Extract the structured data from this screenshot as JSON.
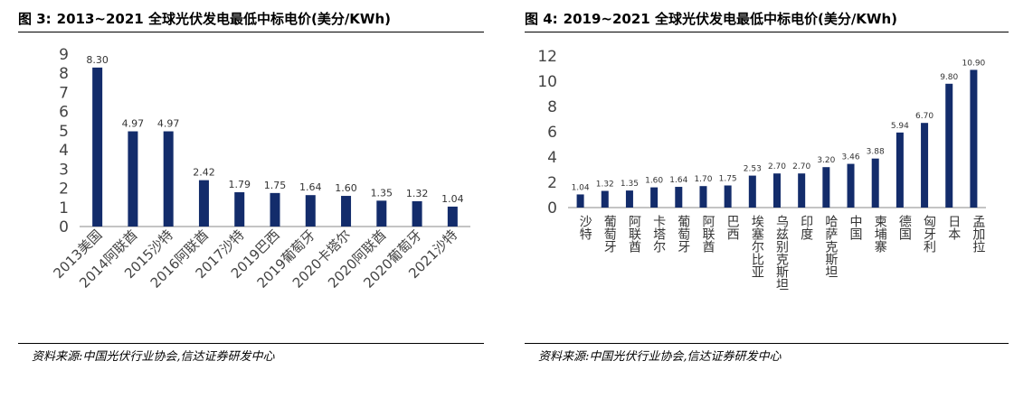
{
  "figures": [
    {
      "label": "图 3:",
      "title": "2013~2021 全球光伏发电最低中标电价(美分/KWh)",
      "source": "资料来源:中国光伏行业协会,信达证券研发中心"
    },
    {
      "label": "图 4:",
      "title": "2019~2021 全球光伏发电最低中标电价(美分/KWh)",
      "source": "资料来源:中国光伏行业协会,信达证券研发中心"
    }
  ],
  "chart_data": [
    {
      "type": "bar",
      "categories": [
        "2013美国",
        "2014阿联酋",
        "2015沙特",
        "2016阿联酋",
        "2017沙特",
        "2019巴西",
        "2019葡萄牙",
        "2020卡塔尔",
        "2020阿联酋",
        "2020葡萄牙",
        "2021沙特"
      ],
      "values": [
        8.3,
        4.97,
        4.97,
        2.42,
        1.79,
        1.75,
        1.64,
        1.6,
        1.35,
        1.32,
        1.04
      ],
      "value_labels": [
        "8.30",
        "4.97",
        "4.97",
        "2.42",
        "1.79",
        "1.75",
        "1.64",
        "1.60",
        "1.35",
        "1.32",
        "1.04"
      ],
      "yticks": [
        "0",
        "1",
        "2",
        "3",
        "4",
        "5",
        "6",
        "7",
        "8",
        "9"
      ],
      "ylim": [
        0,
        9
      ],
      "bar_color": "#132c6b",
      "label_orientation": "rotated-45"
    },
    {
      "type": "bar",
      "categories": [
        "沙特",
        "葡萄牙",
        "阿联酋",
        "卡塔尔",
        "葡萄牙",
        "阿联酋",
        "巴西",
        "埃塞尔比亚",
        "乌兹别克斯坦",
        "印度",
        "哈萨克斯坦",
        "中国",
        "柬埔寨",
        "德国",
        "匈牙利",
        "日本",
        "孟加拉"
      ],
      "values": [
        1.04,
        1.32,
        1.35,
        1.6,
        1.64,
        1.7,
        1.75,
        2.53,
        2.7,
        2.7,
        3.2,
        3.46,
        3.88,
        5.94,
        6.7,
        9.8,
        10.9
      ],
      "value_labels": [
        "1.04",
        "1.32",
        "1.35",
        "1.60",
        "1.64",
        "1.70",
        "1.75",
        "2.53",
        "2.70",
        "2.70",
        "3.20",
        "3.46",
        "3.88",
        "5.94",
        "6.70",
        "9.80",
        "10.90"
      ],
      "yticks": [
        "0",
        "2",
        "4",
        "6",
        "8",
        "10",
        "12"
      ],
      "ylim": [
        0,
        12
      ],
      "bar_color": "#132c6b",
      "label_orientation": "vertical"
    }
  ]
}
